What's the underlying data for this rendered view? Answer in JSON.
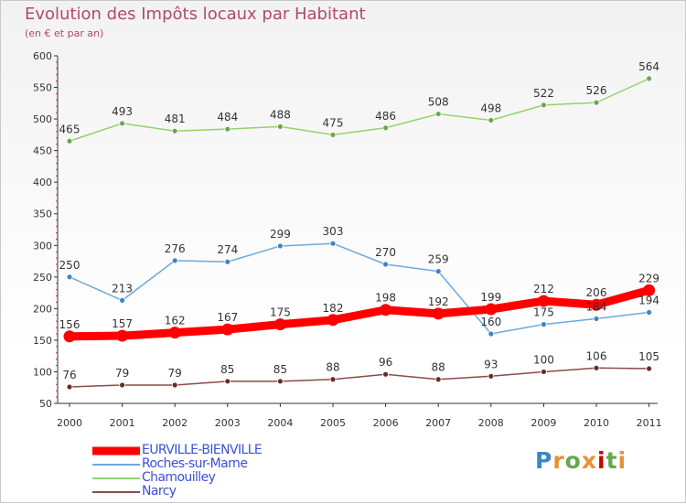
{
  "header": {
    "title": "Evolution des Impôts locaux par Habitant",
    "subtitle": "(en € et par an)"
  },
  "logo": {
    "text": "Proxiti"
  },
  "chart_data": {
    "type": "line",
    "title": "Evolution des Impôts locaux par Habitant",
    "subtitle": "(en € et par an)",
    "x": [
      "2000",
      "2001",
      "2002",
      "2003",
      "2004",
      "2005",
      "2006",
      "2007",
      "2008",
      "2009",
      "2010",
      "2011"
    ],
    "ylim": [
      50,
      600
    ],
    "yticks": [
      50,
      100,
      150,
      200,
      250,
      300,
      350,
      400,
      450,
      500,
      550,
      600
    ],
    "grid": false,
    "legend_position": "bottom-left",
    "series": [
      {
        "name": "EURVILLE-BIENVILLE",
        "color": "#ff0000",
        "marker": "#ff0000",
        "width": "thick",
        "values": [
          156,
          157,
          162,
          167,
          175,
          182,
          198,
          192,
          199,
          212,
          206,
          229
        ]
      },
      {
        "name": "Roches-sur-Marne",
        "color": "#6fa8dc",
        "marker": "#3d85c6",
        "values": [
          250,
          213,
          276,
          274,
          299,
          303,
          270,
          259,
          160,
          175,
          184,
          194
        ]
      },
      {
        "name": "Chamouilley",
        "color": "#93d36a",
        "marker": "#6aa84f",
        "values": [
          465,
          493,
          481,
          484,
          488,
          475,
          486,
          508,
          498,
          522,
          526,
          564
        ]
      },
      {
        "name": "Narcy",
        "color": "#8b4a4a",
        "marker": "#6b2a2a",
        "values": [
          76,
          79,
          79,
          85,
          85,
          88,
          96,
          88,
          93,
          100,
          106,
          105
        ]
      }
    ]
  }
}
